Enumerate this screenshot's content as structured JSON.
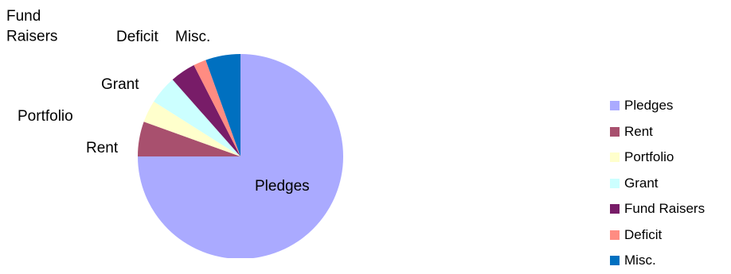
{
  "chart_data": {
    "type": "pie",
    "title": "",
    "categories": [
      "Pledges",
      "Rent",
      "Portfolio",
      "Grant",
      "Fund Raisers",
      "Deficit",
      "Misc."
    ],
    "values": [
      75.0,
      5.5,
      3.5,
      4.5,
      4.0,
      2.0,
      5.5
    ],
    "unit": "%",
    "colors": [
      "#aaaaff",
      "#a8506e",
      "#ffffcc",
      "#ccffff",
      "#781c68",
      "#ff8c82",
      "#0070c0"
    ],
    "legend_position": "right",
    "start_direction": "12 o'clock",
    "direction": "clockwise"
  }
}
